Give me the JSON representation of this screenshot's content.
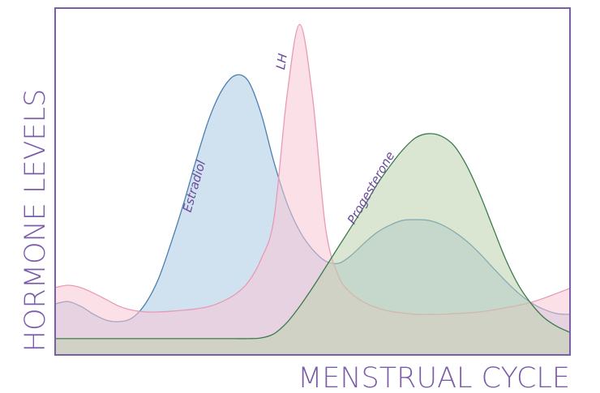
{
  "chart_data": {
    "type": "area",
    "xlabel": "MENSTRUAL CYCLE",
    "ylabel": "HORMONE LEVELS",
    "xlim": [
      0,
      100
    ],
    "ylim": [
      0,
      100
    ],
    "x": [
      0,
      2.5,
      5,
      7.5,
      10,
      12.5,
      15,
      17.5,
      20,
      22.5,
      25,
      27.5,
      30,
      32.5,
      35,
      37.5,
      40,
      42.5,
      45,
      47.5,
      50,
      52.5,
      55,
      57.5,
      60,
      62.5,
      65,
      67.5,
      70,
      72.5,
      75,
      77.5,
      80,
      82.5,
      85,
      87.5,
      90,
      92.5,
      95,
      97.5,
      100
    ],
    "series": [
      {
        "name": "Estradiol",
        "color": "#4a7fb0",
        "fill": "#a9c9e2",
        "values": [
          14.7,
          15.4,
          14.0,
          11.7,
          10.0,
          9.6,
          10.7,
          14.7,
          21.7,
          32.2,
          43.9,
          56.8,
          68.5,
          76.6,
          80.6,
          79.0,
          69.6,
          55.6,
          43.9,
          35.7,
          30.4,
          27.1,
          26.4,
          28.7,
          32.2,
          35.3,
          37.4,
          38.8,
          39.0,
          38.8,
          37.6,
          35.5,
          32.7,
          29.2,
          25.2,
          21.3,
          17.8,
          15.0,
          13.1,
          11.9,
          11.7
        ]
      },
      {
        "name": "LH",
        "color": "#e89ab4",
        "fill": "#f7c6d6",
        "values": [
          19.4,
          20.1,
          19.4,
          17.8,
          15.9,
          14.0,
          12.9,
          12.4,
          12.4,
          12.6,
          12.9,
          13.3,
          14.0,
          15.4,
          17.5,
          21.0,
          27.6,
          39.3,
          74.3,
          95.3,
          74.3,
          36.9,
          22.9,
          17.8,
          15.2,
          13.6,
          12.6,
          12.1,
          11.7,
          11.7,
          11.7,
          11.9,
          12.1,
          12.4,
          12.9,
          13.6,
          14.3,
          15.2,
          16.4,
          17.8,
          19.2
        ]
      },
      {
        "name": "Progesterone",
        "color": "#3e7a4e",
        "fill": "#bcd1ad",
        "values": [
          4.7,
          4.7,
          4.7,
          4.7,
          4.7,
          4.7,
          4.7,
          4.7,
          4.7,
          4.7,
          4.7,
          4.7,
          4.7,
          4.7,
          4.7,
          4.7,
          4.9,
          6.1,
          9.3,
          14.0,
          19.4,
          25.2,
          31.1,
          36.9,
          42.8,
          49.1,
          54.4,
          59.1,
          62.6,
          63.8,
          63.1,
          60.3,
          54.4,
          46.3,
          36.9,
          27.6,
          20.1,
          14.7,
          10.7,
          8.2,
          6.5
        ]
      }
    ]
  }
}
